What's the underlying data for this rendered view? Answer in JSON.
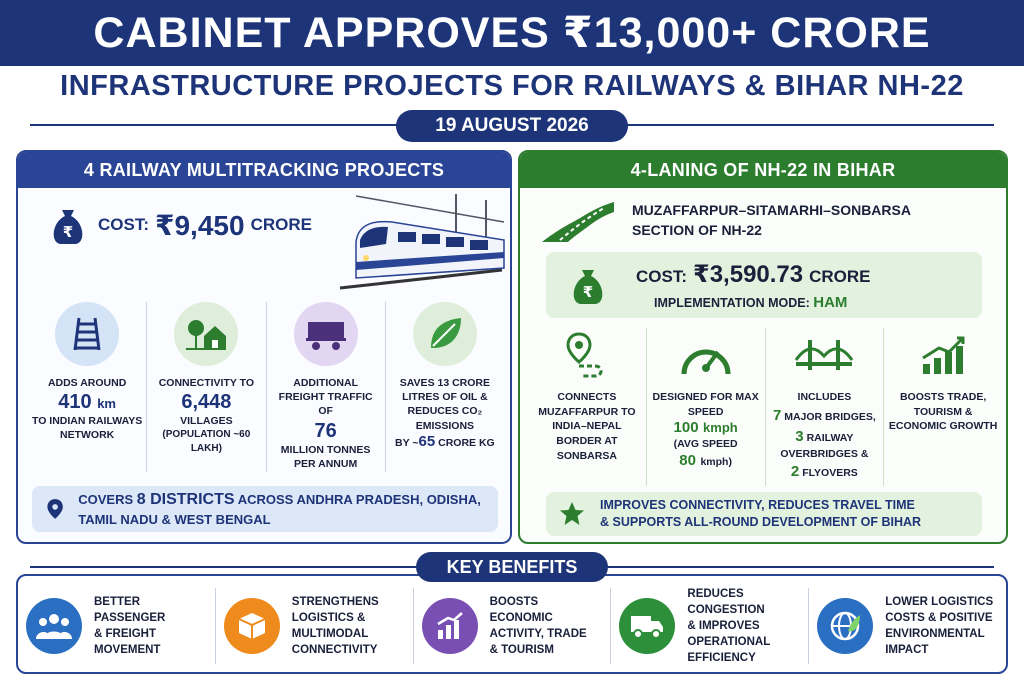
{
  "header": {
    "title": "CABINET APPROVES ₹13,000+ CRORE",
    "subtitle": "INFRASTRUCTURE PROJECTS FOR RAILWAYS & BIHAR NH-22",
    "date": "19 AUGUST 2026"
  },
  "railway": {
    "heading": "4 RAILWAY MULTITRACKING PROJECTS",
    "cost_label": "COST:",
    "cost_value": "₹9,450",
    "cost_unit": "CRORE",
    "stats": [
      {
        "pre": "ADDS AROUND",
        "big": "410",
        "big_unit": "km",
        "post": "TO INDIAN RAILWAYS NETWORK",
        "icon": "railway-track-icon"
      },
      {
        "pre": "CONNECTIVITY TO",
        "big": "6,448",
        "big_unit": "",
        "post": "VILLAGES",
        "post2": "(POPULATION ~60 LAKH)",
        "icon": "village-icon"
      },
      {
        "pre": "ADDITIONAL FREIGHT TRAFFIC OF",
        "big": "76",
        "big_unit": "",
        "post": "MILLION TONNES PER ANNUM",
        "icon": "freight-wagon-icon"
      },
      {
        "pre": "SAVES 13 CRORE LITRES OF OIL & REDUCES CO₂ EMISSIONS",
        "by": "BY ~",
        "big": "65",
        "post": "CRORE KG",
        "icon": "leaf-icon"
      }
    ],
    "districts_pre": "COVERS",
    "districts_num": "8 DISTRICTS",
    "districts_post": "ACROSS ANDHRA PRADESH, ODISHA, TAMIL NADU & WEST BENGAL"
  },
  "highway": {
    "heading": "4-LANING OF NH-22 IN BIHAR",
    "section_line1": "MUZAFFARPUR–SITAMARHI–SONBARSA",
    "section_line2": "SECTION OF NH-22",
    "cost_label": "COST:",
    "cost_value": "₹3,590.73",
    "cost_unit": "CRORE",
    "mode_label": "IMPLEMENTATION MODE:",
    "mode_value": "HAM",
    "stats": [
      {
        "text": "CONNECTS MUZAFFARPUR TO INDIA–NEPAL BORDER AT SONBARSA",
        "icon": "route-pin-icon"
      },
      {
        "pre": "DESIGNED FOR MAX SPEED",
        "big": "100",
        "unit": "kmph",
        "avg_pre": "(AVG SPEED",
        "avg_big": "80",
        "avg_post": "kmph)",
        "icon": "speedometer-icon"
      },
      {
        "pre": "INCLUDES",
        "n1": "7",
        "t1": "MAJOR BRIDGES,",
        "n2": "3",
        "t2": "RAILWAY OVERBRIDGES &",
        "n3": "2",
        "t3": "FLYOVERS",
        "icon": "bridge-icon"
      },
      {
        "text": "BOOSTS TRADE, TOURISM & ECONOMIC GROWTH",
        "icon": "growth-chart-icon"
      }
    ],
    "improve_line1": "IMPROVES CONNECTIVITY, REDUCES TRAVEL TIME",
    "improve_line2": "& SUPPORTS ALL-ROUND DEVELOPMENT OF BIHAR"
  },
  "benefits": {
    "heading": "KEY BENEFITS",
    "items": [
      {
        "l1": "BETTER PASSENGER",
        "l2": "& FREIGHT",
        "l3": "MOVEMENT",
        "l4": "",
        "icon": "people-icon",
        "color": "#2b6fc2"
      },
      {
        "l1": "STRENGTHENS",
        "l2": "LOGISTICS &",
        "l3": "MULTIMODAL",
        "l4": "CONNECTIVITY",
        "icon": "package-icon",
        "color": "#ef8a1c"
      },
      {
        "l1": "BOOSTS ECONOMIC",
        "l2": "ACTIVITY, TRADE",
        "l3": "& TOURISM",
        "l4": "",
        "icon": "bar-growth-icon",
        "color": "#7a4fb3"
      },
      {
        "l1": "REDUCES CONGESTION",
        "l2": "& IMPROVES",
        "l3": "OPERATIONAL",
        "l4": "EFFICIENCY",
        "icon": "truck-icon",
        "color": "#2d8f3a"
      },
      {
        "l1": "LOWER LOGISTICS",
        "l2": "COSTS & POSITIVE",
        "l3": "ENVIRONMENTAL",
        "l4": "IMPACT",
        "icon": "globe-icon",
        "color": "#2b6fc2"
      }
    ]
  }
}
